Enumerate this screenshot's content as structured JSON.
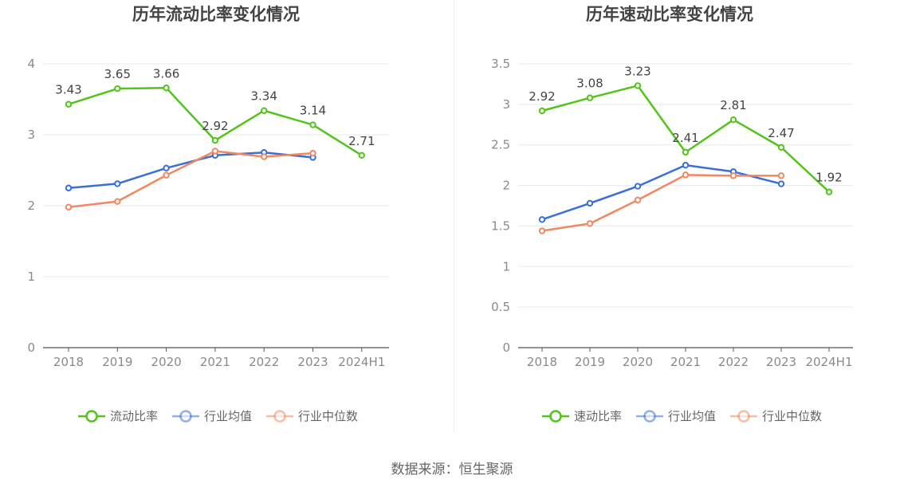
{
  "colors": {
    "primary": "#52c41a",
    "industry_avg": "#3a6fd8",
    "industry_median": "#f08860",
    "grid": "#e6e9f0",
    "axis": "#555555",
    "tick_text": "#8a8a8a",
    "title_text": "#444444",
    "label_text": "#444444",
    "legend_text": "#666666"
  },
  "source": "数据来源：恒生聚源",
  "chart_data": [
    {
      "type": "line",
      "title": "历年流动比率变化情况",
      "xlabel": "",
      "ylabel": "",
      "ylim": [
        0,
        4
      ],
      "yticks": [
        0,
        1,
        2,
        3,
        4
      ],
      "ytick_labels": [
        "0",
        "1",
        "2",
        "3",
        "4"
      ],
      "categories": [
        "2018",
        "2019",
        "2020",
        "2021",
        "2022",
        "2023",
        "2024H1"
      ],
      "legend_position": "bottom-center",
      "series": [
        {
          "name": "流动比率",
          "color": "#52c41a",
          "values": [
            3.43,
            3.65,
            3.66,
            2.92,
            3.34,
            3.14,
            2.71
          ],
          "labels": [
            "3.43",
            "3.65",
            "3.66",
            "2.92",
            "3.34",
            "3.14",
            "2.71"
          ]
        },
        {
          "name": "行业均值",
          "color": "#3a6fd8",
          "values": [
            2.25,
            2.31,
            2.53,
            2.71,
            2.75,
            2.68,
            null
          ]
        },
        {
          "name": "行业中位数",
          "color": "#f08860",
          "values": [
            1.98,
            2.06,
            2.43,
            2.77,
            2.69,
            2.74,
            null
          ]
        }
      ]
    },
    {
      "type": "line",
      "title": "历年速动比率变化情况",
      "xlabel": "",
      "ylabel": "",
      "ylim": [
        0,
        3.5
      ],
      "yticks": [
        0,
        0.5,
        1,
        1.5,
        2,
        2.5,
        3,
        3.5
      ],
      "ytick_labels": [
        "0",
        "0.5",
        "1",
        "1.5",
        "2",
        "2.5",
        "3",
        "3.5"
      ],
      "categories": [
        "2018",
        "2019",
        "2020",
        "2021",
        "2022",
        "2023",
        "2024H1"
      ],
      "legend_position": "bottom-center",
      "series": [
        {
          "name": "速动比率",
          "color": "#52c41a",
          "values": [
            2.92,
            3.08,
            3.23,
            2.41,
            2.81,
            2.47,
            1.92
          ],
          "labels": [
            "2.92",
            "3.08",
            "3.23",
            "2.41",
            "2.81",
            "2.47",
            "1.92"
          ]
        },
        {
          "name": "行业均值",
          "color": "#3a6fd8",
          "values": [
            1.58,
            1.78,
            1.99,
            2.25,
            2.17,
            2.02,
            null
          ]
        },
        {
          "name": "行业中位数",
          "color": "#f08860",
          "values": [
            1.44,
            1.53,
            1.82,
            2.13,
            2.12,
            2.12,
            null
          ]
        }
      ]
    }
  ]
}
